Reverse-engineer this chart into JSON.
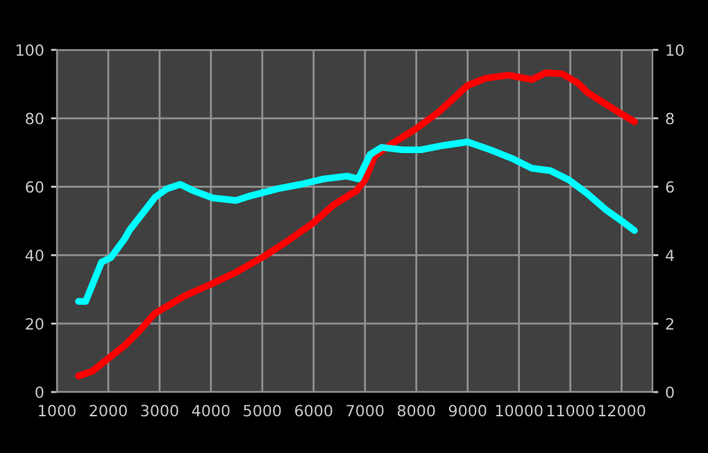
{
  "chart_data": {
    "type": "line",
    "xlim": [
      1000,
      12600
    ],
    "xticks": [
      1000,
      2000,
      3000,
      4000,
      5000,
      6000,
      7000,
      8000,
      9000,
      10000,
      11000,
      12000
    ],
    "ylim": [
      0,
      100
    ],
    "yticks": [
      0,
      20,
      40,
      60,
      80,
      100
    ],
    "y2lim": [
      0,
      10
    ],
    "y2ticks": [
      0,
      2,
      4,
      6,
      8,
      10
    ],
    "grid": true,
    "legend": false,
    "marker": "none",
    "line_style": "solid",
    "series": [
      {
        "color": "#ff0000",
        "x": [
          1420,
          1690,
          2000,
          2320,
          2590,
          2910,
          3500,
          4000,
          4490,
          5030,
          5480,
          6000,
          6380,
          6740,
          6830,
          7000,
          7190,
          7550,
          8000,
          8450,
          9000,
          9350,
          9800,
          10250,
          10520,
          10840,
          11150,
          11330,
          11600,
          11960,
          12250
        ],
        "values": [
          4.7,
          6.1,
          9.8,
          13.6,
          17.6,
          23,
          28.2,
          31.5,
          35,
          39.6,
          44,
          49.5,
          54.6,
          58,
          58.7,
          62,
          69,
          72.8,
          77,
          82,
          89.6,
          91.7,
          92.6,
          91.3,
          93.3,
          93,
          90.3,
          87.6,
          85,
          81.6,
          79
        ]
      },
      {
        "color": "#00ffff",
        "axis": "y2",
        "x": [
          1420,
          1560,
          1870,
          2050,
          2320,
          2410,
          2910,
          3140,
          3400,
          3680,
          4040,
          4490,
          4760,
          5300,
          5750,
          6200,
          6650,
          6870,
          7100,
          7320,
          7730,
          8090,
          8540,
          9000,
          9440,
          9890,
          10250,
          10610,
          10970,
          11330,
          11690,
          12010,
          12250
        ],
        "values": [
          2.65,
          2.65,
          3.8,
          3.93,
          4.48,
          4.72,
          5.69,
          5.94,
          6.07,
          5.87,
          5.67,
          5.6,
          5.73,
          5.94,
          6.07,
          6.23,
          6.31,
          6.23,
          6.94,
          7.15,
          7.08,
          7.08,
          7.21,
          7.31,
          7.08,
          6.81,
          6.54,
          6.47,
          6.2,
          5.8,
          5.33,
          4.99,
          4.72
        ]
      }
    ]
  }
}
